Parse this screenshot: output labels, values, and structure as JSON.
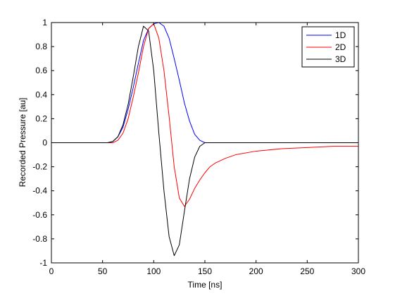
{
  "chart_data": {
    "type": "line",
    "xlabel": "Time [ns]",
    "ylabel": "Recorded Pressure [au]",
    "xlim": [
      0,
      300
    ],
    "ylim": [
      -1,
      1
    ],
    "xticks": [
      0,
      50,
      100,
      150,
      200,
      250,
      300
    ],
    "yticks": [
      -1,
      -0.8,
      -0.6,
      -0.4,
      -0.2,
      0,
      0.2,
      0.4,
      0.6,
      0.8,
      1
    ],
    "grid": false,
    "legend": "top-right",
    "series": [
      {
        "name": "1D",
        "color": "#0000ff",
        "x": [
          0,
          55,
          60,
          65,
          70,
          75,
          80,
          85,
          90,
          95,
          100,
          105,
          110,
          115,
          120,
          125,
          130,
          135,
          140,
          145,
          150,
          155,
          160,
          200,
          250,
          300
        ],
        "y": [
          0,
          0,
          0.01,
          0.05,
          0.13,
          0.28,
          0.46,
          0.66,
          0.85,
          0.95,
          0.99,
          1.0,
          0.97,
          0.87,
          0.7,
          0.52,
          0.33,
          0.18,
          0.07,
          0.02,
          0,
          0,
          0,
          0,
          0,
          0
        ]
      },
      {
        "name": "2D",
        "color": "#ff0000",
        "x": [
          0,
          60,
          65,
          70,
          75,
          80,
          85,
          90,
          95,
          100,
          105,
          110,
          115,
          120,
          125,
          130,
          135,
          140,
          145,
          150,
          155,
          160,
          170,
          180,
          200,
          225,
          250,
          275,
          300
        ],
        "y": [
          0,
          0,
          0.02,
          0.08,
          0.2,
          0.38,
          0.58,
          0.8,
          0.95,
          0.99,
          0.87,
          0.6,
          0.22,
          -0.2,
          -0.46,
          -0.53,
          -0.47,
          -0.38,
          -0.31,
          -0.25,
          -0.2,
          -0.17,
          -0.13,
          -0.1,
          -0.07,
          -0.05,
          -0.04,
          -0.03,
          -0.03
        ]
      },
      {
        "name": "3D",
        "color": "#000000",
        "x": [
          0,
          55,
          60,
          65,
          70,
          75,
          80,
          85,
          90,
          95,
          100,
          105,
          110,
          115,
          120,
          125,
          130,
          135,
          140,
          145,
          150,
          155,
          160,
          200,
          250,
          300
        ],
        "y": [
          0,
          0,
          0.01,
          0.05,
          0.15,
          0.32,
          0.55,
          0.8,
          0.97,
          0.93,
          0.6,
          0.08,
          -0.4,
          -0.78,
          -0.94,
          -0.85,
          -0.57,
          -0.3,
          -0.12,
          -0.03,
          0,
          0,
          0,
          0,
          0,
          0
        ]
      }
    ]
  }
}
